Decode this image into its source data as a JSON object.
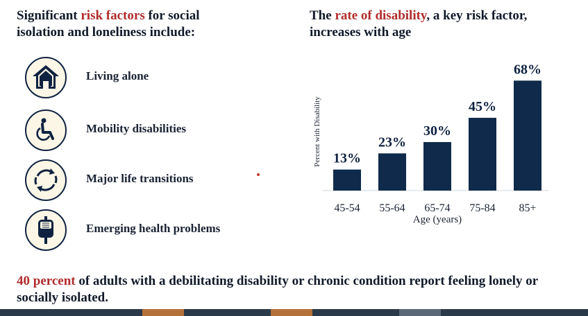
{
  "left": {
    "heading_pre": "Significant ",
    "heading_accent": "risk factors",
    "heading_post": " for social isolation and loneliness include:"
  },
  "factors": [
    {
      "label": "Living alone",
      "icon": "house-icon"
    },
    {
      "label": "Mobility disabilities",
      "icon": "wheelchair-icon"
    },
    {
      "label": "Major life transitions",
      "icon": "cycle-arrows-icon"
    },
    {
      "label": "Emerging health problems",
      "icon": "iv-bag-icon"
    }
  ],
  "right": {
    "heading_pre": "The ",
    "heading_accent": "rate of disability",
    "heading_post": ", a key risk factor, increases with age"
  },
  "chart_data": {
    "type": "bar",
    "categories": [
      "45-54",
      "55-64",
      "65-74",
      "75-84",
      "85+"
    ],
    "values": [
      13,
      23,
      30,
      45,
      68
    ],
    "value_labels": [
      "13%",
      "23%",
      "30%",
      "45%",
      "68%"
    ],
    "xlabel": "Age (years)",
    "ylabel": "Percent with Disability",
    "ylim": [
      0,
      75
    ],
    "grid": false,
    "bar_color": "#0f2a4a"
  },
  "bottom": {
    "accent": "40 percent",
    "rest": " of adults with a debilitating disability or chronic condition report feeling lonely or socially isolated."
  },
  "colors": {
    "accent": "#b12c2c",
    "navy": "#0f2a4a",
    "icon_bg": "#fbf6e6",
    "footer": [
      "#2b3a4a",
      "#b5713a",
      "#2b3a4a",
      "#b5713a",
      "#2b3a4a",
      "#5a6878",
      "#2b3a4a"
    ]
  }
}
